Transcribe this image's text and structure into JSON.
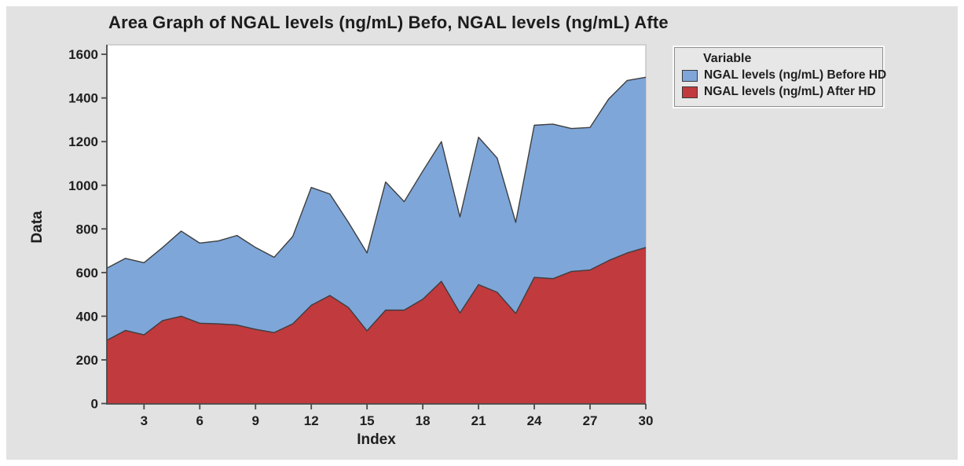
{
  "title": "Area Graph of NGAL levels (ng/mL) Befo, NGAL levels (ng/mL) Afte",
  "axes": {
    "y_label": "Data",
    "x_label": "Index"
  },
  "legend": {
    "title": "Variable",
    "items": [
      {
        "label": "NGAL levels (ng/mL) Before HD",
        "color": "#7EA6D9"
      },
      {
        "label": "NGAL levels (ng/mL) After HD",
        "color": "#C03A3E"
      }
    ]
  },
  "colors": {
    "figure_bg": "#E2E2E2",
    "plot_bg": "#FFFFFF",
    "plot_border": "#C6C6C6",
    "axis": "#4A4A4A",
    "text": "#1F1F1F",
    "series_outline": "#3E3E3E"
  },
  "chart_data": {
    "type": "area",
    "mode": "overlay",
    "title": "Area Graph of NGAL levels (ng/mL) Befo, NGAL levels (ng/mL) Afte",
    "xlabel": "Index",
    "ylabel": "Data",
    "xlim": [
      1,
      30
    ],
    "ylim": [
      0,
      1600
    ],
    "grid": false,
    "legend_position": "outside-top-right",
    "x_ticks": [
      3,
      6,
      9,
      12,
      15,
      18,
      21,
      24,
      27,
      30
    ],
    "y_ticks": [
      0,
      200,
      400,
      600,
      800,
      1000,
      1200,
      1400,
      1600
    ],
    "x": [
      1,
      2,
      3,
      4,
      5,
      6,
      7,
      8,
      9,
      10,
      11,
      12,
      13,
      14,
      15,
      16,
      17,
      18,
      19,
      20,
      21,
      22,
      23,
      24,
      25,
      26,
      27,
      28,
      29,
      30
    ],
    "outline_color": "#3E3E3E",
    "series": [
      {
        "name": "NGAL levels (ng/mL) Before HD",
        "color": "#7EA6D9",
        "values": [
          620,
          665,
          645,
          715,
          790,
          735,
          745,
          770,
          715,
          670,
          765,
          990,
          960,
          830,
          690,
          1015,
          925,
          1065,
          1200,
          855,
          1220,
          1125,
          830,
          1275,
          1280,
          1260,
          1265,
          1395,
          1480,
          1495
        ]
      },
      {
        "name": "NGAL levels (ng/mL) After HD",
        "color": "#C03A3E",
        "values": [
          290,
          335,
          315,
          380,
          400,
          368,
          365,
          360,
          340,
          325,
          365,
          450,
          495,
          440,
          333,
          428,
          428,
          478,
          560,
          415,
          545,
          510,
          413,
          578,
          572,
          605,
          612,
          655,
          690,
          715
        ]
      }
    ]
  }
}
